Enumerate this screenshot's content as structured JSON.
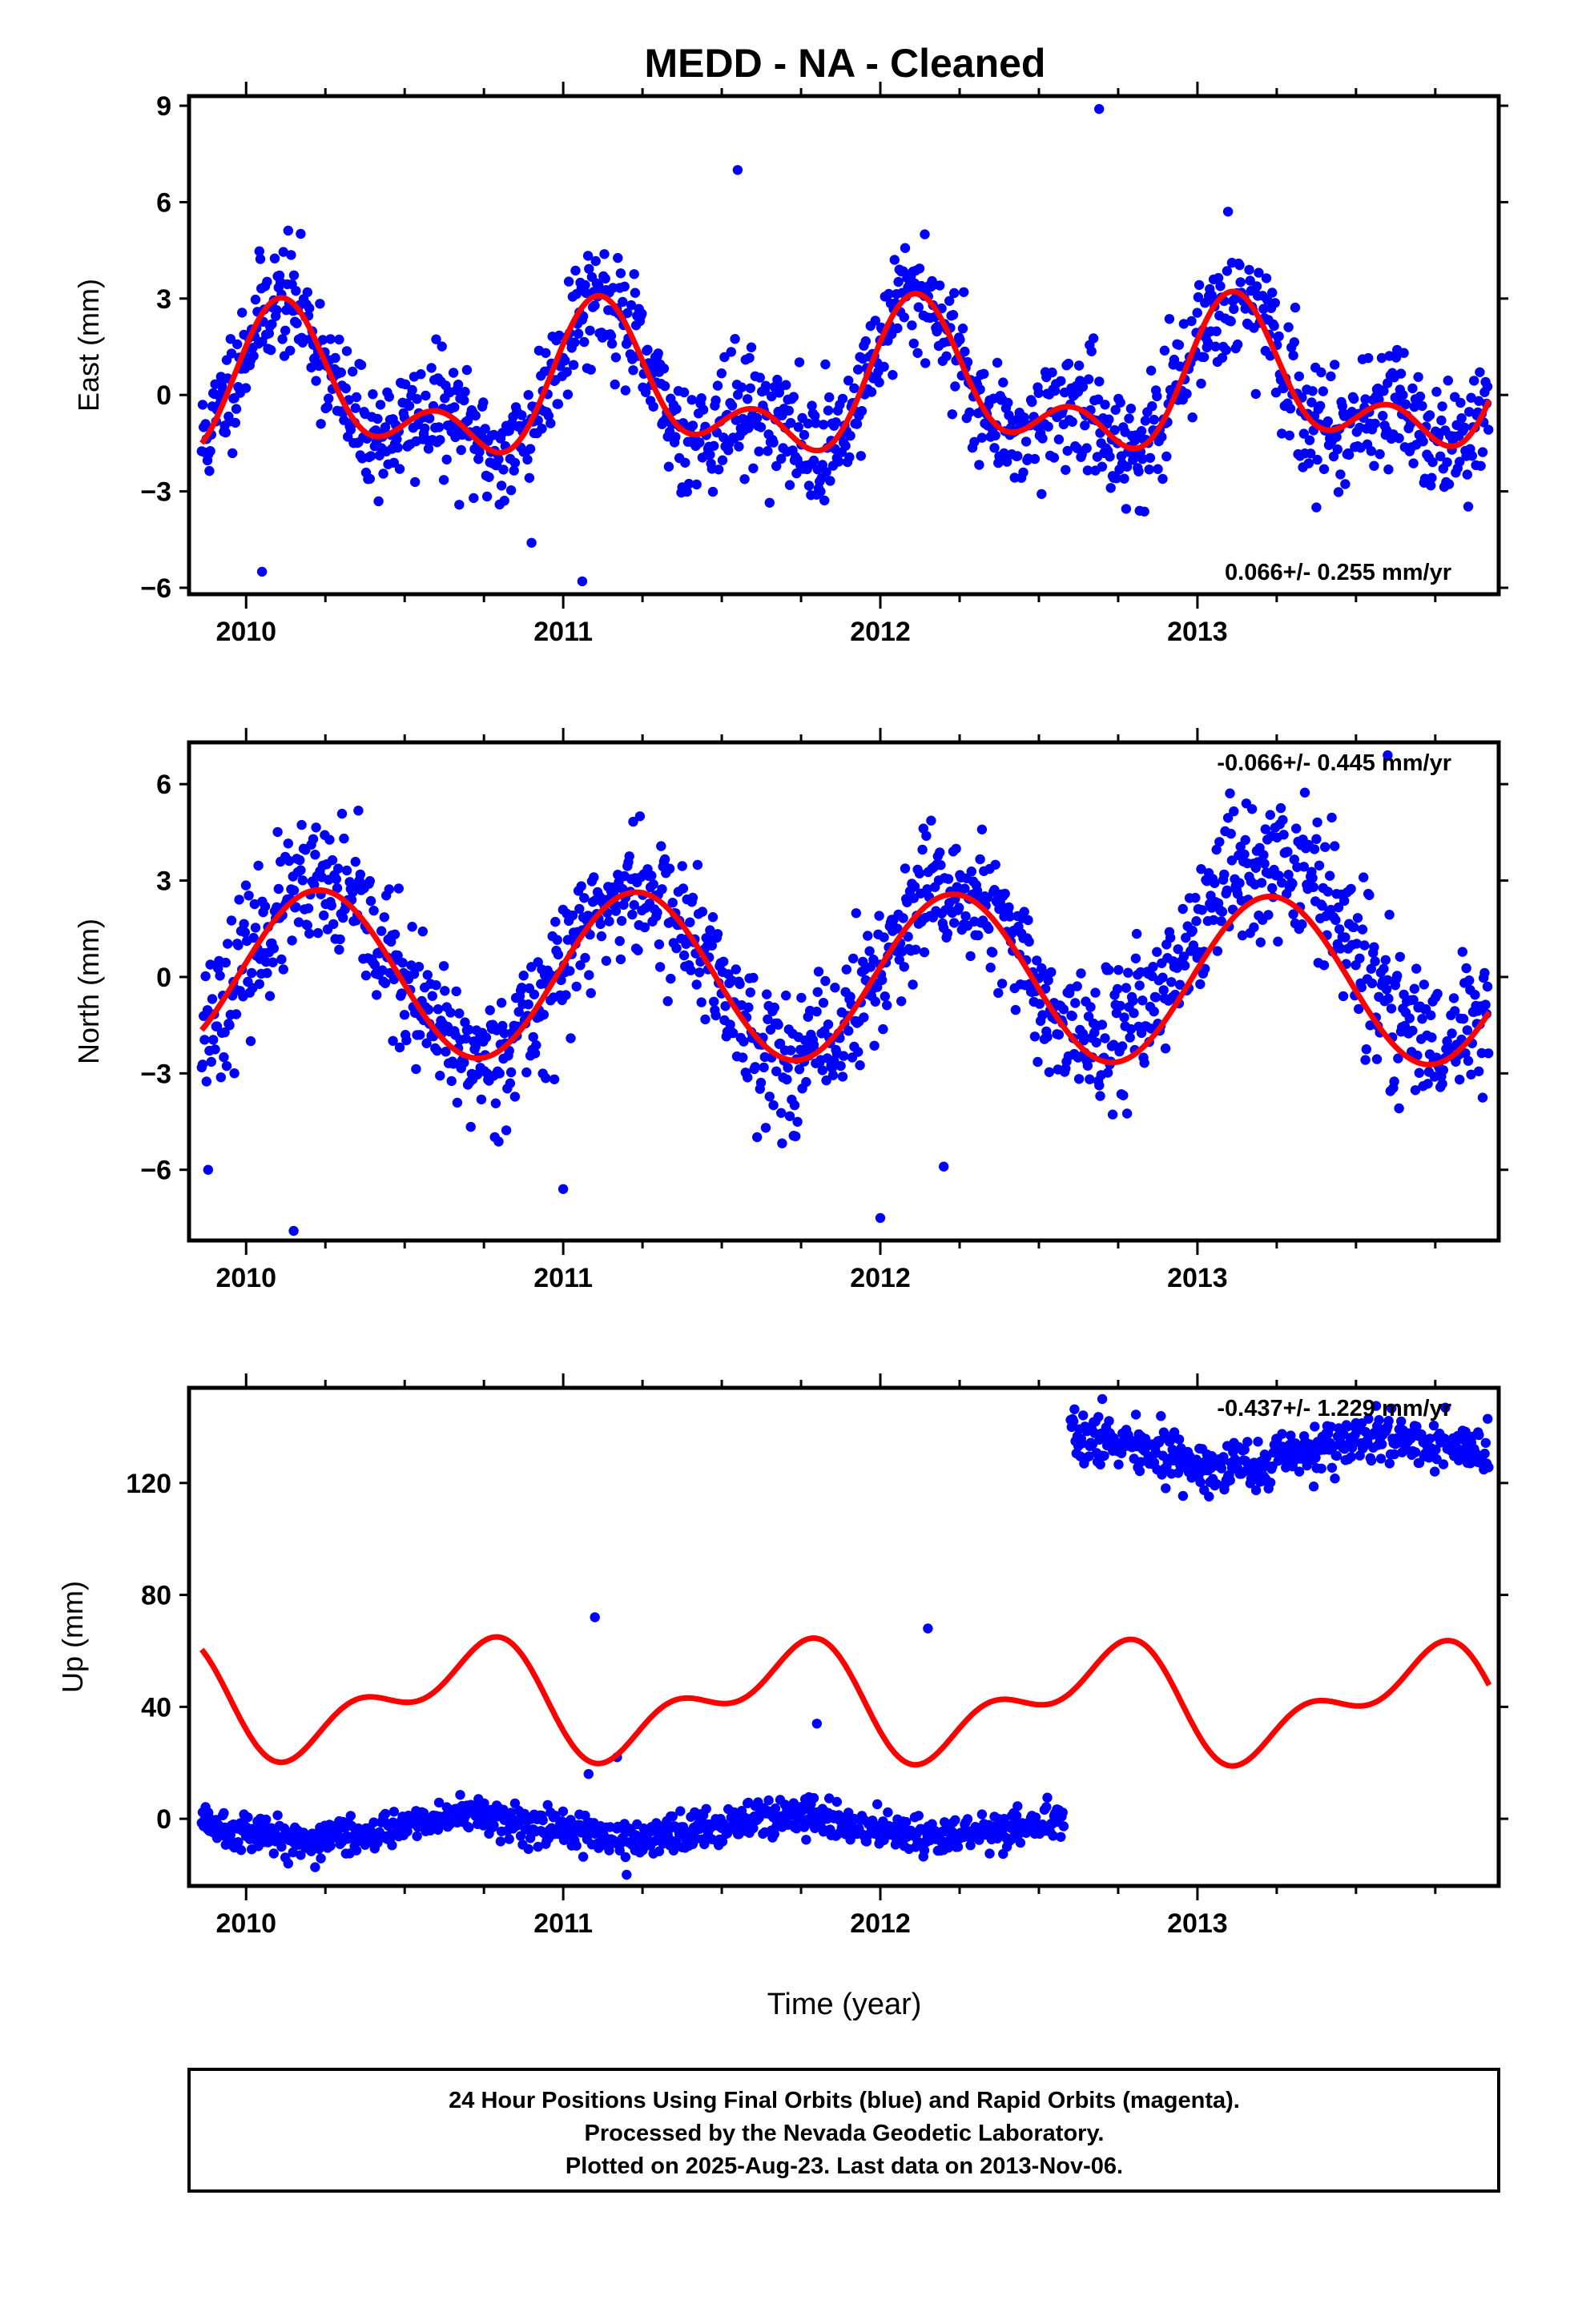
{
  "chart_data": {
    "type": "scatter",
    "title": "MEDD  - NA - Cleaned",
    "xlabel": "Time (year)",
    "xlim": [
      2009.82,
      2013.95
    ],
    "x_ticks": [
      "2010",
      "2011",
      "2012",
      "2013"
    ],
    "point_color": "#0000ff",
    "model_color": "#ff0000",
    "panels": [
      {
        "id": "east",
        "ylabel": "East (mm)",
        "ylim": [
          -6.2,
          9.3
        ],
        "y_ticks": [
          "9",
          "6",
          "3",
          "0",
          "−3",
          "−6"
        ],
        "y_tick_values": [
          9,
          6,
          3,
          0,
          -3,
          -6
        ],
        "rate_text": "0.066+/- 0.255 mm/yr",
        "model": {
          "offset": 0.1,
          "a1": 1.8,
          "p1": 2009.88,
          "a2": 1.25,
          "p2": 2009.98,
          "trend": 0.066,
          "t0": 2011.8
        },
        "scatter": {
          "noise": 0.9,
          "seed": 11
        },
        "outliers": [
          [
            2012.69,
            8.9
          ],
          [
            2011.55,
            7.0
          ],
          [
            2012.14,
            5.0
          ],
          [
            2011.06,
            -5.8
          ],
          [
            2010.05,
            -5.5
          ],
          [
            2010.9,
            -4.6
          ]
        ]
      },
      {
        "id": "north",
        "ylabel": "North (mm)",
        "ylim": [
          -8.2,
          7.3
        ],
        "y_ticks": [
          "6",
          "3",
          "0",
          "−3",
          "−6"
        ],
        "y_tick_values": [
          6,
          3,
          0,
          -3,
          -6
        ],
        "rate_text": "-0.066+/- 0.445 mm/yr",
        "model": {
          "offset": 0.0,
          "a1": 2.6,
          "p1": 2009.98,
          "a2": 0.0,
          "p2": 2009.98,
          "trend": -0.066,
          "t0": 2011.8
        },
        "scatter": {
          "noise": 1.05,
          "seed": 23
        },
        "extra_bias": [
          [
            2012.55,
            2013.95,
            1.3
          ]
        ],
        "outliers": [
          [
            2010.15,
            -7.9
          ],
          [
            2012.0,
            -7.5
          ],
          [
            2009.88,
            -6.0
          ],
          [
            2011.0,
            -6.6
          ],
          [
            2012.2,
            -5.9
          ],
          [
            2013.6,
            6.9
          ]
        ]
      },
      {
        "id": "up",
        "ylabel": "Up (mm)",
        "ylim": [
          -24,
          154
        ],
        "y_ticks": [
          "120",
          "80",
          "40",
          "0"
        ],
        "y_tick_values": [
          120,
          80,
          40,
          0
        ],
        "rate_text": "-0.437+/- 1.229 mm/yr",
        "model": {
          "offset": 42,
          "a1": 16,
          "p1": 2010.45,
          "a2": 10,
          "p2": 2010.2,
          "trend": -0.437,
          "t0": 2011.8
        },
        "scatter_segments": [
          {
            "from": 2009.86,
            "to": 2012.58,
            "level": -3,
            "a": 4,
            "phase": 2010.45,
            "noise": 3.2,
            "seed": 5
          },
          {
            "from": 2012.6,
            "to": 2013.92,
            "level": 131,
            "a": 5,
            "phase": 2013.35,
            "noise": 4.5,
            "seed": 7
          }
        ],
        "outliers": [
          [
            2011.1,
            72
          ],
          [
            2012.15,
            68
          ],
          [
            2011.8,
            34
          ],
          [
            2011.17,
            22
          ],
          [
            2011.08,
            16
          ],
          [
            2012.7,
            150
          ],
          [
            2011.2,
            -20
          ]
        ]
      }
    ],
    "footer": [
      "24 Hour Positions Using Final Orbits (blue) and Rapid Orbits (magenta).",
      "Processed by the Nevada Geodetic Laboratory.",
      "Plotted on 2025-Aug-23. Last data on 2013-Nov-06."
    ]
  }
}
